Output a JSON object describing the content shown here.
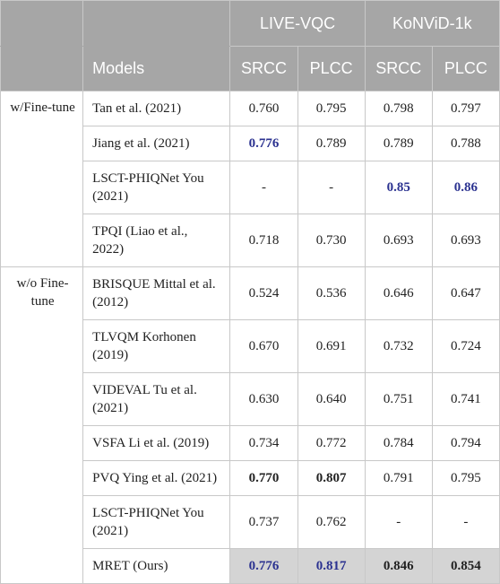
{
  "header": {
    "models_label": "Models",
    "datasets": [
      "LIVE-VQC",
      "KoNViD-1k"
    ],
    "metrics": [
      "SRCC",
      "PLCC",
      "SRCC",
      "PLCC"
    ]
  },
  "groups": {
    "finetune": "w/Fine-tune",
    "no_finetune": "w/o Fine-tune"
  },
  "rows": [
    {
      "model": "Tan et al. (2021)",
      "v": [
        "0.760",
        "0.795",
        "0.798",
        "0.797"
      ]
    },
    {
      "model": "Jiang et al. (2021)",
      "v": [
        "0.776",
        "0.789",
        "0.789",
        "0.788"
      ]
    },
    {
      "model": "LSCT-PHIQNet You (2021)",
      "v": [
        "-",
        "-",
        "0.85",
        "0.86"
      ]
    },
    {
      "model": "TPQI (Liao et al., 2022)",
      "v": [
        "0.718",
        "0.730",
        "0.693",
        "0.693"
      ]
    },
    {
      "model": "BRISQUE Mittal et al. (2012)",
      "v": [
        "0.524",
        "0.536",
        "0.646",
        "0.647"
      ]
    },
    {
      "model": "TLVQM Korhonen (2019)",
      "v": [
        "0.670",
        "0.691",
        "0.732",
        "0.724"
      ]
    },
    {
      "model": "VIDEVAL Tu et al. (2021)",
      "v": [
        "0.630",
        "0.640",
        "0.751",
        "0.741"
      ]
    },
    {
      "model": "VSFA Li et al. (2019)",
      "v": [
        "0.734",
        "0.772",
        "0.784",
        "0.794"
      ]
    },
    {
      "model": "PVQ Ying et al. (2021)",
      "v": [
        "0.770",
        "0.807",
        "0.791",
        "0.795"
      ]
    },
    {
      "model": "LSCT-PHIQNet You (2021)",
      "v": [
        "0.737",
        "0.762",
        "-",
        "-"
      ]
    },
    {
      "model": "MRET (Ours)",
      "v": [
        "0.776",
        "0.817",
        "0.846",
        "0.854"
      ]
    }
  ],
  "colors": {
    "header_bg": "#a6a6a6",
    "highlight_blue": "#2b3290",
    "ours_bg": "#d4d4d4"
  }
}
